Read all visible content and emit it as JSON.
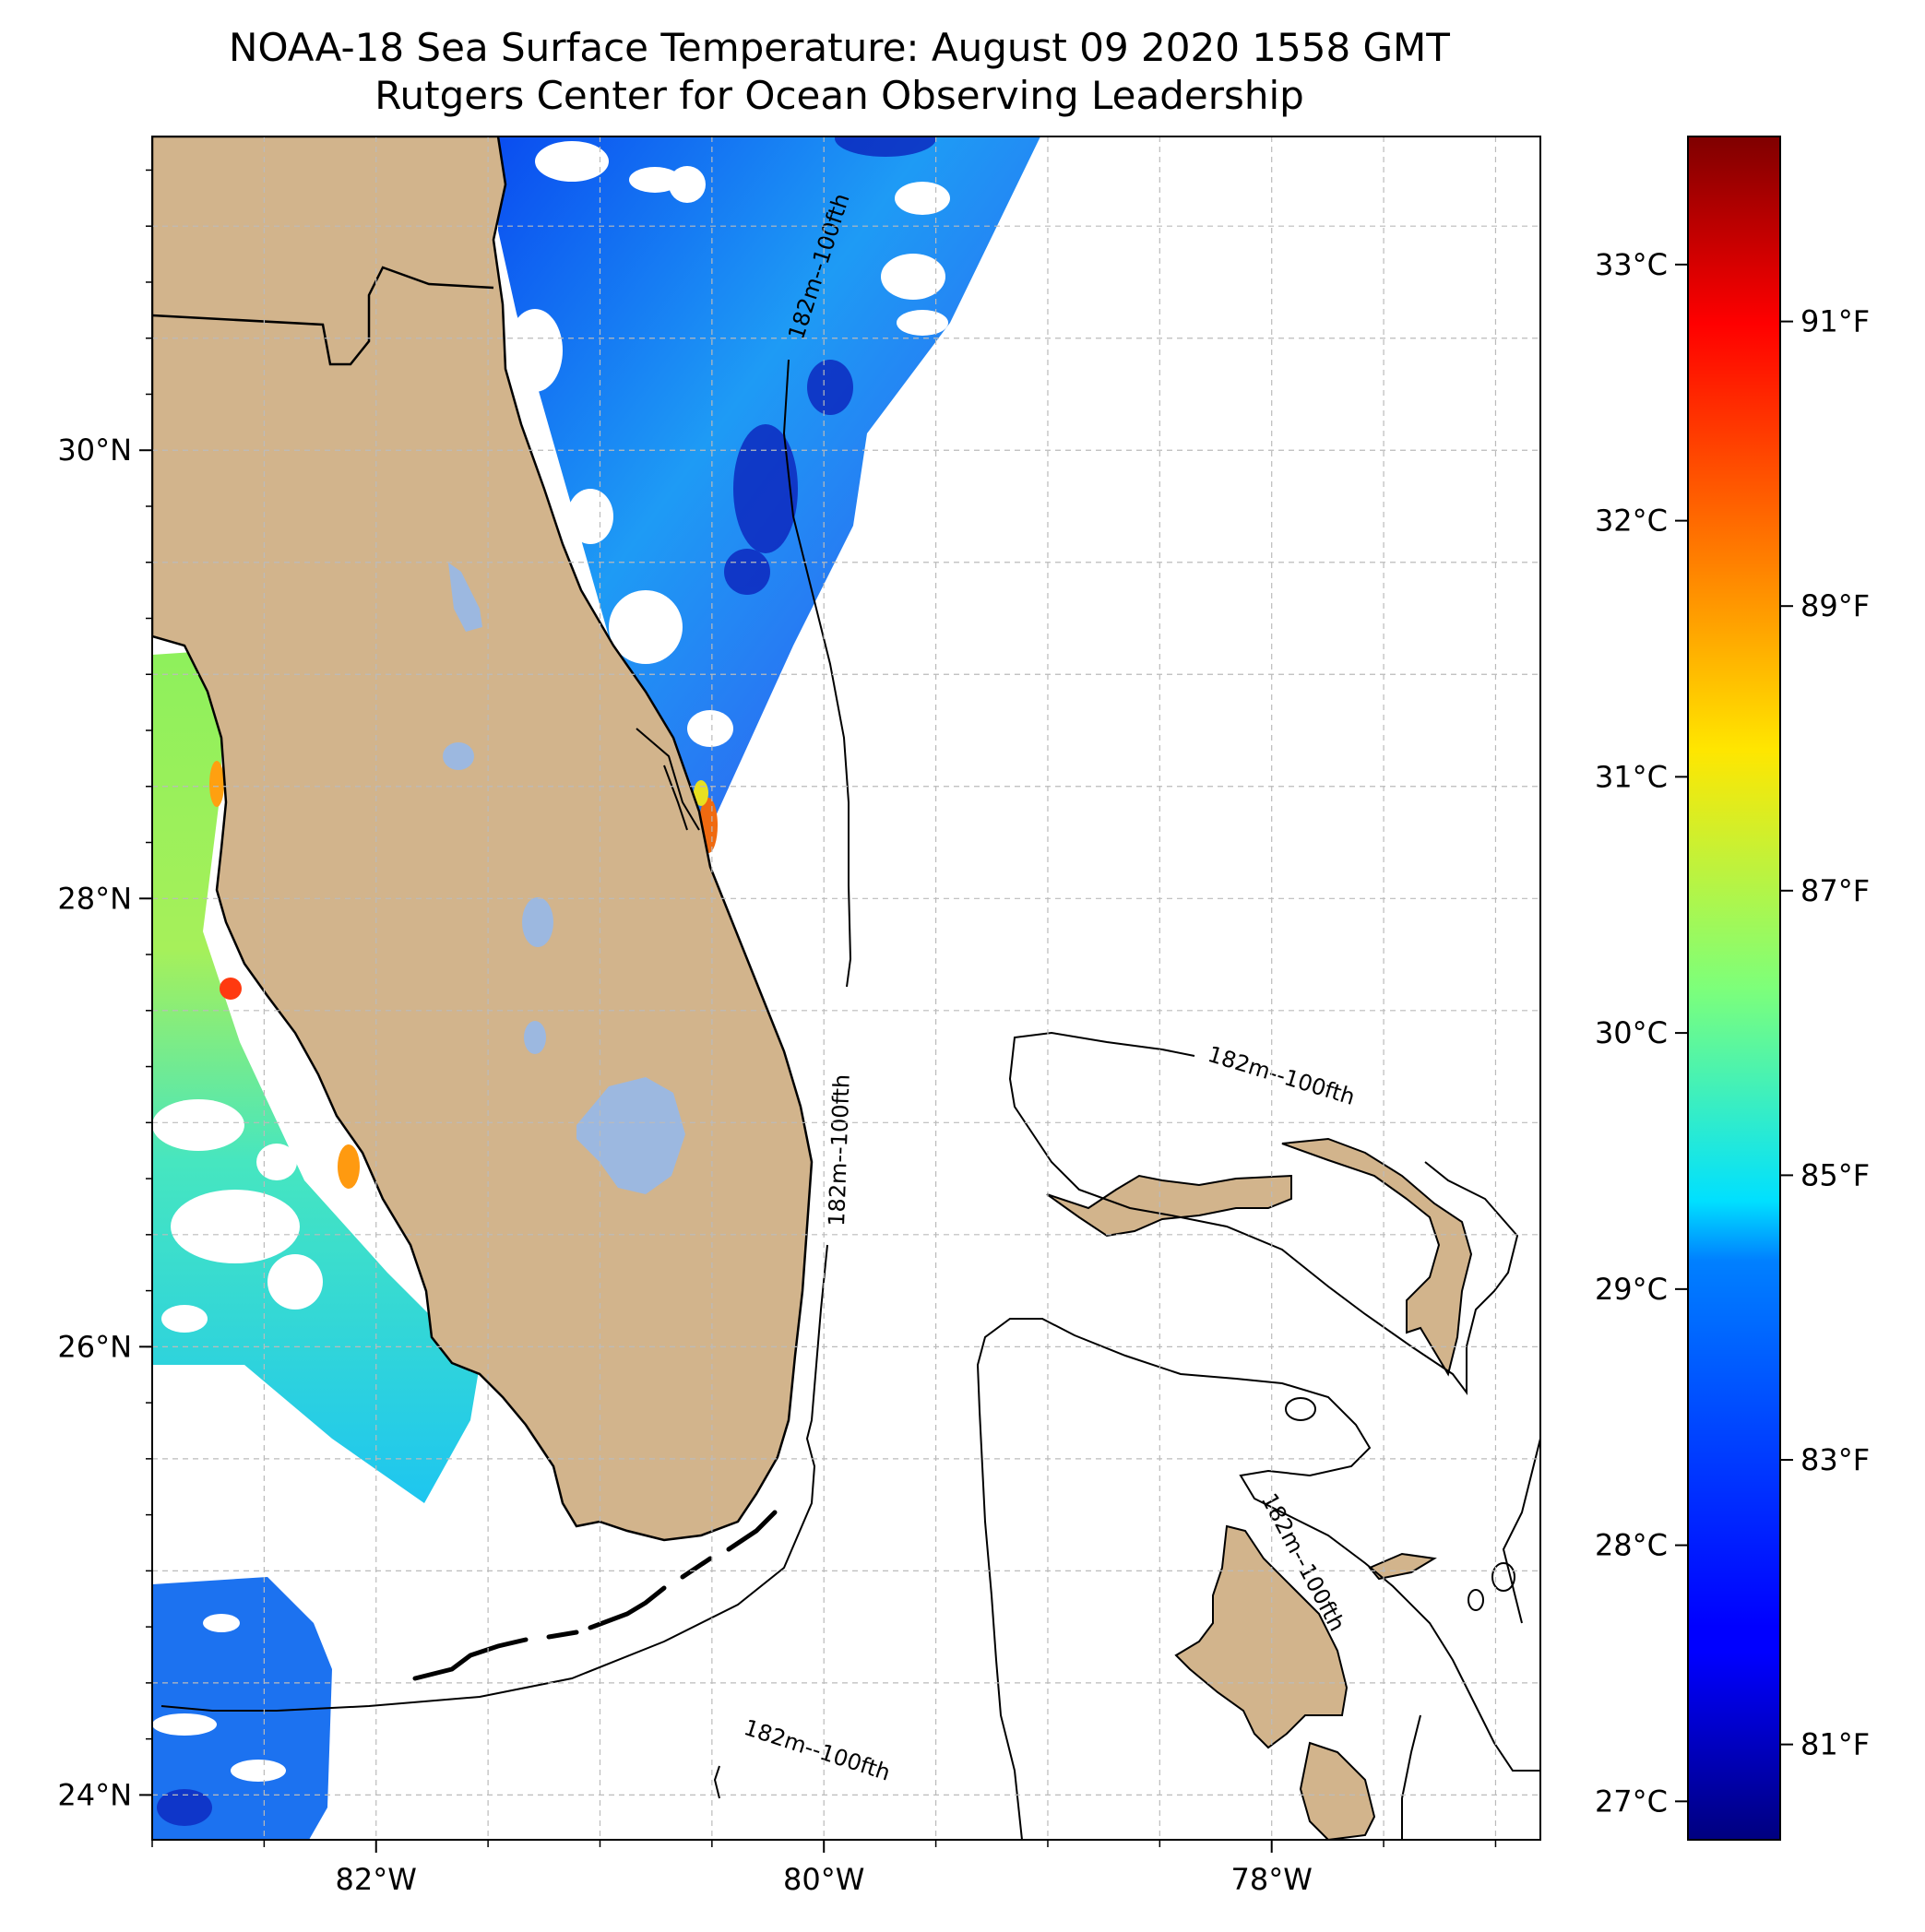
{
  "title": {
    "line1": "NOAA-18 Sea Surface Temperature: August 09 2020 1558 GMT",
    "line2": "Rutgers Center for Ocean Observing Leadership"
  },
  "map": {
    "lon_range": [
      -83.0,
      -76.8
    ],
    "lat_range": [
      23.8,
      31.4
    ],
    "lon_ticks": [
      {
        "value": -82,
        "label": "82°W"
      },
      {
        "value": -80,
        "label": "80°W"
      },
      {
        "value": -78,
        "label": "78°W"
      }
    ],
    "lat_ticks": [
      {
        "value": 30,
        "label": "30°N"
      },
      {
        "value": 28,
        "label": "28°N"
      },
      {
        "value": 26,
        "label": "26°N"
      },
      {
        "value": 24,
        "label": "24°N"
      }
    ],
    "grid": true,
    "contour_label": "182m--100fth",
    "colors": {
      "land": "#d2b48c",
      "lake": "#9cb8e0",
      "coast": "#000000",
      "grid": "#bbbbbb"
    }
  },
  "colorbar": {
    "celsius_ticks": [
      {
        "value": 33,
        "label": "33°C"
      },
      {
        "value": 32,
        "label": "32°C"
      },
      {
        "value": 31,
        "label": "31°C"
      },
      {
        "value": 30,
        "label": "30°C"
      },
      {
        "value": 29,
        "label": "29°C"
      },
      {
        "value": 28,
        "label": "28°C"
      },
      {
        "value": 27,
        "label": "27°C"
      }
    ],
    "fahrenheit_ticks": [
      {
        "value": 91,
        "label": "91°F"
      },
      {
        "value": 89,
        "label": "89°F"
      },
      {
        "value": 87,
        "label": "87°F"
      },
      {
        "value": 85,
        "label": "85°F"
      },
      {
        "value": 83,
        "label": "83°F"
      },
      {
        "value": 81,
        "label": "81°F"
      }
    ],
    "range_c": [
      26.85,
      33.5
    ],
    "colormap": "jet"
  }
}
